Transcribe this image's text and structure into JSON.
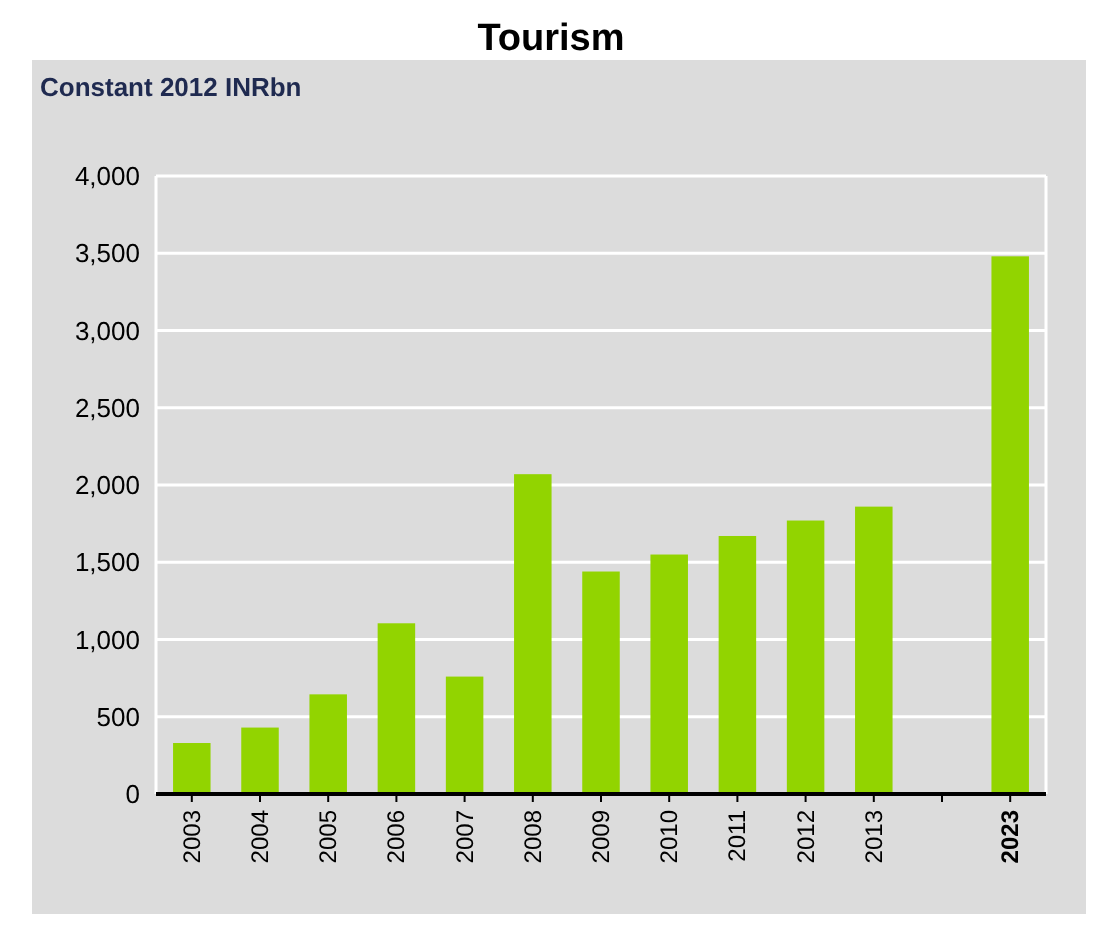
{
  "chart_data": {
    "type": "bar",
    "title": "Tourism",
    "ylabel": "Constant 2012 INRbn",
    "categories": [
      "2003",
      "2004",
      "2005",
      "2006",
      "2007",
      "2008",
      "2009",
      "2010",
      "2011",
      "2012",
      "2013",
      null,
      "2023"
    ],
    "values": [
      330,
      430,
      645,
      1105,
      760,
      2070,
      1440,
      1550,
      1670,
      1770,
      1860,
      null,
      3480
    ],
    "color": "#92d400",
    "ylim": [
      0,
      4000
    ],
    "yticks": [
      {
        "value": 0,
        "label": "0"
      },
      {
        "value": 500,
        "label": "500"
      },
      {
        "value": 1000,
        "label": "1,000"
      },
      {
        "value": 1500,
        "label": "1,500"
      },
      {
        "value": 2000,
        "label": "2,000"
      },
      {
        "value": 2500,
        "label": "2,500"
      },
      {
        "value": 3000,
        "label": "3,000"
      },
      {
        "value": 3500,
        "label": "3,500"
      },
      {
        "value": 4000,
        "label": "4,000"
      }
    ],
    "grid": "y"
  }
}
